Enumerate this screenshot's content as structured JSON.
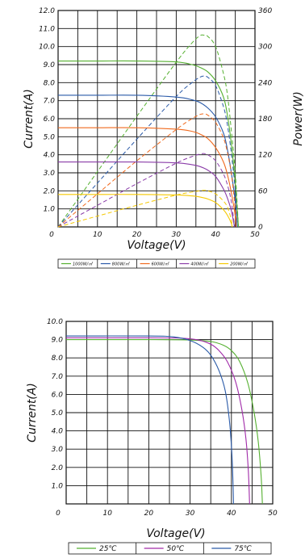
{
  "chart_data": [
    {
      "type": "line",
      "xlabel": "Voltage(V)",
      "ylabel": "Current(A)",
      "y2label": "Power(W)",
      "xlim": [
        0,
        50
      ],
      "ylim": [
        0,
        12
      ],
      "y2lim": [
        0,
        360
      ],
      "x_ticks": [
        "0",
        "10",
        "20",
        "30",
        "40",
        "50"
      ],
      "y_ticks": [
        "1.0",
        "2.0",
        "3.0",
        "4.0",
        "5.0",
        "6.0",
        "7.0",
        "8.0",
        "9.0",
        "10.0",
        "11.0",
        "12.0"
      ],
      "y2_ticks": [
        "0",
        "60",
        "120",
        "180",
        "240",
        "300",
        "360"
      ],
      "grid": true,
      "legend_position": "bottom",
      "series": [
        {
          "name": "1000W/㎡",
          "color": "#55b030",
          "isc": 9.2,
          "voc": 45.8,
          "iv": [
            [
              0,
              9.2
            ],
            [
              10,
              9.2
            ],
            [
              20,
              9.2
            ],
            [
              30,
              9.15
            ],
            [
              34,
              9.0
            ],
            [
              36,
              8.85
            ],
            [
              38,
              8.6
            ],
            [
              40,
              8.1
            ],
            [
              42,
              7.2
            ],
            [
              43,
              6.2
            ],
            [
              44,
              4.6
            ],
            [
              45,
              2.4
            ],
            [
              45.8,
              0
            ]
          ],
          "pv": [
            [
              0,
              0
            ],
            [
              10,
              92
            ],
            [
              20,
              184
            ],
            [
              30,
              274
            ],
            [
              34,
              306
            ],
            [
              36,
              318
            ],
            [
              37,
              319
            ],
            [
              38,
              317
            ],
            [
              40,
              300
            ],
            [
              42,
              255
            ],
            [
              43,
              220
            ],
            [
              44,
              160
            ],
            [
              45,
              90
            ],
            [
              45.8,
              0
            ]
          ]
        },
        {
          "name": "800W/㎡",
          "color": "#2a5aa8",
          "isc": 7.3,
          "voc": 45.5,
          "iv": [
            [
              0,
              7.3
            ],
            [
              10,
              7.3
            ],
            [
              20,
              7.3
            ],
            [
              30,
              7.2
            ],
            [
              34,
              7.05
            ],
            [
              36,
              6.9
            ],
            [
              38,
              6.6
            ],
            [
              40,
              6.1
            ],
            [
              42,
              5.2
            ],
            [
              43,
              4.3
            ],
            [
              44,
              3.0
            ],
            [
              45,
              1.4
            ],
            [
              45.5,
              0
            ]
          ],
          "pv": [
            [
              0,
              0
            ],
            [
              10,
              73
            ],
            [
              20,
              146
            ],
            [
              30,
              217
            ],
            [
              34,
              240
            ],
            [
              36,
              249
            ],
            [
              37,
              251
            ],
            [
              38,
              249
            ],
            [
              40,
              235
            ],
            [
              42,
              200
            ],
            [
              43,
              170
            ],
            [
              44,
              122
            ],
            [
              45,
              60
            ],
            [
              45.5,
              0
            ]
          ]
        },
        {
          "name": "600W/㎡",
          "color": "#f06a1e",
          "isc": 5.5,
          "voc": 45.2,
          "iv": [
            [
              0,
              5.5
            ],
            [
              10,
              5.5
            ],
            [
              20,
              5.5
            ],
            [
              30,
              5.42
            ],
            [
              34,
              5.3
            ],
            [
              36,
              5.15
            ],
            [
              38,
              4.9
            ],
            [
              40,
              4.4
            ],
            [
              42,
              3.6
            ],
            [
              43,
              2.9
            ],
            [
              44,
              1.9
            ],
            [
              45,
              0.6
            ],
            [
              45.2,
              0
            ]
          ],
          "pv": [
            [
              0,
              0
            ],
            [
              10,
              55
            ],
            [
              20,
              110
            ],
            [
              30,
              162
            ],
            [
              34,
              180
            ],
            [
              36,
              187
            ],
            [
              37,
              188
            ],
            [
              38,
              186
            ],
            [
              40,
              174
            ],
            [
              42,
              148
            ],
            [
              43,
              124
            ],
            [
              44,
              88
            ],
            [
              45,
              30
            ],
            [
              45.2,
              0
            ]
          ]
        },
        {
          "name": "400W/㎡",
          "color": "#8a3ca8",
          "isc": 3.6,
          "voc": 44.8,
          "iv": [
            [
              0,
              3.6
            ],
            [
              10,
              3.6
            ],
            [
              20,
              3.6
            ],
            [
              30,
              3.55
            ],
            [
              34,
              3.45
            ],
            [
              36,
              3.35
            ],
            [
              38,
              3.15
            ],
            [
              40,
              2.8
            ],
            [
              42,
              2.1
            ],
            [
              43,
              1.6
            ],
            [
              44,
              0.9
            ],
            [
              44.8,
              0
            ]
          ],
          "pv": [
            [
              0,
              0
            ],
            [
              10,
              36
            ],
            [
              20,
              72
            ],
            [
              30,
              106
            ],
            [
              34,
              117
            ],
            [
              36,
              121
            ],
            [
              37,
              122
            ],
            [
              38,
              120
            ],
            [
              40,
              110
            ],
            [
              42,
              88
            ],
            [
              43,
              70
            ],
            [
              44,
              42
            ],
            [
              44.8,
              0
            ]
          ]
        },
        {
          "name": "200W/㎡",
          "color": "#f5c800",
          "isc": 1.8,
          "voc": 44.2,
          "iv": [
            [
              0,
              1.8
            ],
            [
              10,
              1.8
            ],
            [
              20,
              1.8
            ],
            [
              30,
              1.77
            ],
            [
              34,
              1.72
            ],
            [
              36,
              1.66
            ],
            [
              38,
              1.55
            ],
            [
              40,
              1.35
            ],
            [
              42,
              0.95
            ],
            [
              43,
              0.65
            ],
            [
              44,
              0.2
            ],
            [
              44.2,
              0
            ]
          ],
          "pv": [
            [
              0,
              0
            ],
            [
              10,
              18
            ],
            [
              20,
              36
            ],
            [
              30,
              53
            ],
            [
              34,
              58
            ],
            [
              36,
              60
            ],
            [
              37,
              61
            ],
            [
              38,
              60
            ],
            [
              40,
              55
            ],
            [
              42,
              43
            ],
            [
              43,
              33
            ],
            [
              44,
              12
            ],
            [
              44.2,
              0
            ]
          ]
        }
      ]
    },
    {
      "type": "line",
      "xlabel": "Voltage(V)",
      "ylabel": "Current(A)",
      "xlim": [
        0,
        50
      ],
      "ylim": [
        0,
        10
      ],
      "x_ticks": [
        "0",
        "10",
        "20",
        "30",
        "40",
        "50"
      ],
      "y_ticks": [
        "1.0",
        "2.0",
        "3.0",
        "4.0",
        "5.0",
        "6.0",
        "7.0",
        "8.0",
        "9.0",
        "10.0"
      ],
      "grid": true,
      "legend_position": "bottom",
      "series": [
        {
          "name": "25℃",
          "color": "#55b030",
          "iv": [
            [
              0,
              9.0
            ],
            [
              20,
              9.0
            ],
            [
              30,
              8.98
            ],
            [
              35,
              8.9
            ],
            [
              38,
              8.7
            ],
            [
              40,
              8.4
            ],
            [
              42,
              7.8
            ],
            [
              44,
              6.6
            ],
            [
              45.5,
              5.0
            ],
            [
              46.5,
              3.4
            ],
            [
              47.2,
              1.5
            ],
            [
              47.5,
              0
            ]
          ]
        },
        {
          "name": "50℃",
          "color": "#a02aa8",
          "iv": [
            [
              0,
              9.1
            ],
            [
              20,
              9.1
            ],
            [
              28,
              9.08
            ],
            [
              32,
              8.98
            ],
            [
              35,
              8.75
            ],
            [
              37,
              8.4
            ],
            [
              39,
              7.8
            ],
            [
              41,
              6.7
            ],
            [
              42.5,
              5.2
            ],
            [
              43.5,
              3.6
            ],
            [
              44.1,
              1.8
            ],
            [
              44.4,
              0
            ]
          ]
        },
        {
          "name": "75℃",
          "color": "#2a5aa8",
          "iv": [
            [
              0,
              9.2
            ],
            [
              20,
              9.2
            ],
            [
              26,
              9.15
            ],
            [
              30,
              8.95
            ],
            [
              33,
              8.6
            ],
            [
              35,
              8.15
            ],
            [
              37,
              7.3
            ],
            [
              38.5,
              6.2
            ],
            [
              39.5,
              4.6
            ],
            [
              40.1,
              2.8
            ],
            [
              40.4,
              1.0
            ],
            [
              40.5,
              0
            ]
          ]
        }
      ]
    }
  ]
}
